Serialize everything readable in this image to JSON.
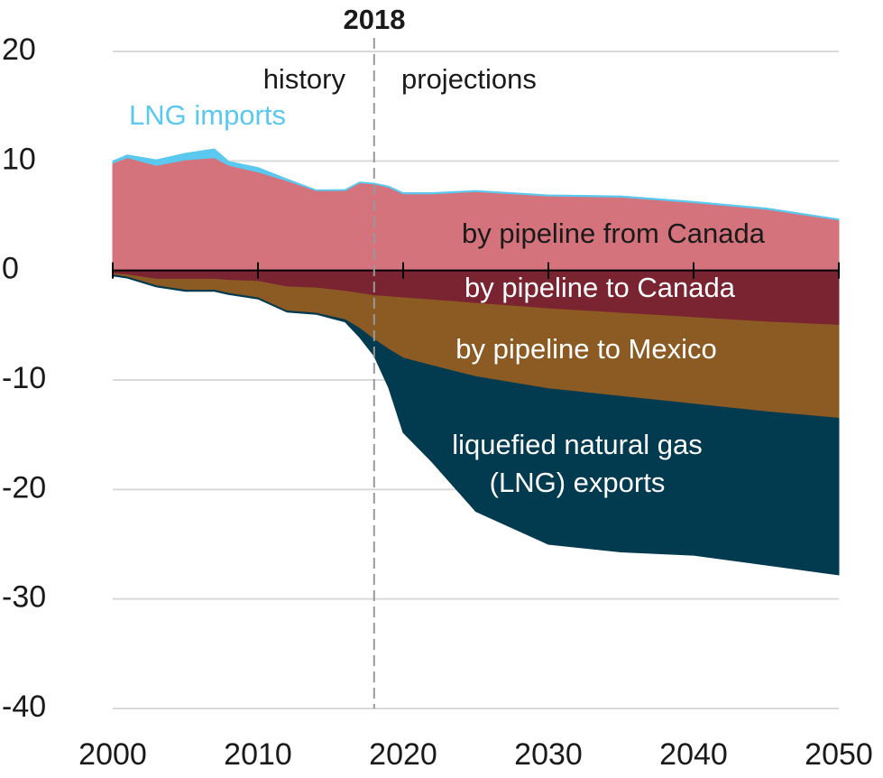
{
  "chart_data": {
    "type": "stacked-area",
    "annotations": {
      "year": "2018",
      "history": "history",
      "projections": "projections"
    },
    "divider_x": 2018,
    "x": [
      2000,
      2001,
      2003,
      2005,
      2007,
      2008,
      2010,
      2012,
      2014,
      2016,
      2017,
      2018,
      2019,
      2020,
      2022,
      2025,
      2030,
      2035,
      2040,
      2045,
      2050
    ],
    "series": [
      {
        "name": "by pipeline from Canada",
        "color": "#d4737c",
        "values": [
          9.8,
          10.3,
          9.6,
          10.1,
          10.3,
          9.6,
          9.0,
          8.2,
          7.3,
          7.3,
          8.0,
          7.9,
          7.6,
          7.0,
          7.0,
          7.2,
          6.8,
          6.7,
          6.2,
          5.6,
          4.6
        ]
      },
      {
        "name": "LNG imports",
        "color": "#5bc8ef",
        "values": [
          0.2,
          0.25,
          0.5,
          0.6,
          0.8,
          0.35,
          0.4,
          0.15,
          0.06,
          0.08,
          0.08,
          0.07,
          0.1,
          0.1,
          0.1,
          0.1,
          0.1,
          0.1,
          0.1,
          0.1,
          0.1
        ]
      },
      {
        "name": "by pipeline to Canada",
        "color": "#7b2431",
        "values": [
          -0.3,
          -0.4,
          -0.8,
          -0.8,
          -0.8,
          -0.9,
          -1.0,
          -1.5,
          -1.6,
          -1.9,
          -2.1,
          -2.3,
          -2.4,
          -2.5,
          -2.7,
          -3.0,
          -3.5,
          -3.9,
          -4.3,
          -4.7,
          -5.0
        ]
      },
      {
        "name": "by pipeline to Mexico",
        "color": "#8c5a23",
        "values": [
          -0.1,
          -0.2,
          -0.6,
          -1.0,
          -1.0,
          -1.2,
          -1.5,
          -2.2,
          -2.3,
          -2.6,
          -3.2,
          -4.0,
          -4.8,
          -5.5,
          -6.0,
          -6.7,
          -7.3,
          -7.6,
          -7.9,
          -8.2,
          -8.5
        ]
      },
      {
        "name": "liquefied natural gas (LNG) exports",
        "color": "#023a50",
        "values": [
          -0.1,
          -0.1,
          -0.1,
          -0.1,
          -0.1,
          -0.1,
          -0.1,
          -0.1,
          -0.1,
          -0.2,
          -0.8,
          -1.5,
          -3.5,
          -6.8,
          -8.8,
          -12.3,
          -14.2,
          -14.2,
          -13.8,
          -14.0,
          -14.3
        ]
      }
    ],
    "xlim": [
      2000,
      2050
    ],
    "xticks": [
      2000,
      2010,
      2020,
      2030,
      2040,
      2050
    ],
    "ylim": [
      -40,
      20
    ],
    "yticks": [
      -40,
      -30,
      -20,
      -10,
      0,
      10,
      20
    ],
    "grid": true
  }
}
